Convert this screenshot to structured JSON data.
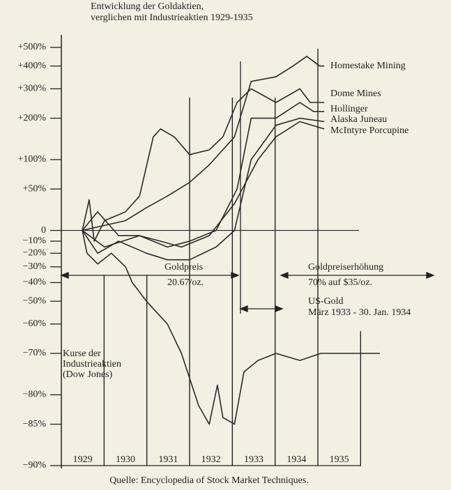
{
  "chart_data": {
    "type": "line",
    "title": "Entwicklung der Goldaktien,",
    "subtitle": "verglichen mit Industrieaktien 1929-1935",
    "source": "Quelle: Encyclopedia of Stock Market Techniques.",
    "yscale": "log-ratio",
    "ylim": [
      -90,
      500
    ],
    "yticks": [
      {
        "value": 500,
        "label": "+500%"
      },
      {
        "value": 400,
        "label": "+400%"
      },
      {
        "value": 300,
        "label": "+300%"
      },
      {
        "value": 200,
        "label": "+200%"
      },
      {
        "value": 100,
        "label": "+100%"
      },
      {
        "value": 50,
        "label": "+50%"
      },
      0,
      {
        "value": -10,
        "label": "−10%"
      },
      {
        "value": -20,
        "label": "−20%"
      },
      {
        "value": -30,
        "label": "−30%"
      },
      {
        "value": -40,
        "label": "−40%"
      },
      {
        "value": -50,
        "label": "−50%"
      },
      {
        "value": -60,
        "label": "−60%"
      },
      {
        "value": -70,
        "label": "−70%"
      },
      {
        "value": -80,
        "label": "−80%"
      },
      {
        "value": -85,
        "label": "−85%"
      },
      {
        "value": -90,
        "label": "−90%"
      }
    ],
    "xlim": [
      1929,
      1936.5
    ],
    "xticks": [
      {
        "value": 1929.5,
        "label": "1929"
      },
      {
        "value": 1930.5,
        "label": "1930"
      },
      {
        "value": 1931.5,
        "label": "1931"
      },
      {
        "value": 1932.5,
        "label": "1932"
      },
      {
        "value": 1933.5,
        "label": "1933"
      },
      {
        "value": 1934.5,
        "label": "1934"
      },
      {
        "value": 1935.5,
        "label": "1935"
      }
    ],
    "year_lines": [
      1930,
      1931,
      1932,
      1933,
      1934,
      1935,
      1936
    ],
    "annotations": [
      {
        "text": "Goldpreis",
        "sub": "20.67/oz."
      },
      {
        "text": "Goldpreiserhöhung",
        "sub": "70% auf $35/oz."
      },
      {
        "text": "US-Gold",
        "sub": "März 1933 - 30. Jan. 1934"
      }
    ],
    "series": [
      {
        "name": "Homestake Mining",
        "color": "#2a2a2a",
        "x": [
          1929.49,
          1930.01,
          1930.5,
          1930.99,
          1931.48,
          1932.0,
          1932.46,
          1933.05,
          1933.44,
          1934.02,
          1934.42,
          1934.74,
          1935.04,
          1935.15
        ],
        "values": [
          0,
          5,
          10,
          25,
          40,
          60,
          90,
          150,
          330,
          350,
          400,
          450,
          400,
          400
        ]
      },
      {
        "name": "Dome Mines",
        "color": "#2a2a2a",
        "x": [
          1929.49,
          1929.65,
          1929.77,
          1930.01,
          1930.5,
          1930.83,
          1931.15,
          1931.32,
          1931.64,
          1932.0,
          1932.46,
          1932.78,
          1933.11,
          1933.44,
          1934.02,
          1934.58,
          1934.82,
          1935.15
        ],
        "values": [
          0,
          35,
          -10,
          10,
          20,
          40,
          150,
          170,
          150,
          110,
          120,
          150,
          250,
          300,
          250,
          300,
          250,
          250
        ]
      },
      {
        "name": "Hollinger",
        "color": "#2a2a2a",
        "x": [
          1929.49,
          1930.01,
          1930.83,
          1931.48,
          1932.0,
          1932.62,
          1933.11,
          1933.44,
          1934.02,
          1934.58,
          1934.9,
          1935.15
        ],
        "values": [
          0,
          -15,
          -5,
          -15,
          -10,
          0,
          50,
          200,
          200,
          250,
          220,
          220
        ]
      },
      {
        "name": "Alaska Juneau",
        "color": "#2a2a2a",
        "x": [
          1929.49,
          1929.85,
          1930.34,
          1930.99,
          1931.48,
          1932.0,
          1932.62,
          1933.05,
          1933.44,
          1934.02,
          1934.58,
          1935.15
        ],
        "values": [
          0,
          -20,
          -10,
          -20,
          -25,
          -25,
          -15,
          0,
          100,
          180,
          200,
          190
        ]
      },
      {
        "name": "McIntyre Porcupine",
        "color": "#2a2a2a",
        "x": [
          1929.49,
          1929.85,
          1930.34,
          1930.83,
          1931.32,
          1931.81,
          1932.46,
          1933.05,
          1933.6,
          1934.02,
          1934.58,
          1935.15
        ],
        "values": [
          0,
          20,
          -5,
          -5,
          -10,
          -15,
          -5,
          30,
          100,
          150,
          190,
          170
        ]
      },
      {
        "name": "Kurse der Industrieaktien (Dow Jones)",
        "color": "#2a2a2a",
        "x": [
          1929.49,
          1929.6,
          1929.85,
          1930.17,
          1930.5,
          1930.66,
          1930.99,
          1931.48,
          1931.81,
          1932.21,
          1932.46,
          1932.65,
          1932.78,
          1933.05,
          1933.27,
          1933.6,
          1934.02,
          1934.58,
          1935.07,
          1935.72,
          1936.45
        ],
        "values": [
          0,
          -20,
          -28,
          -20,
          -30,
          -40,
          -50,
          -60,
          -70,
          -82,
          -85,
          -78,
          -84,
          -85,
          -75,
          -72,
          -70,
          -72,
          -70,
          -70,
          -70
        ]
      }
    ]
  }
}
